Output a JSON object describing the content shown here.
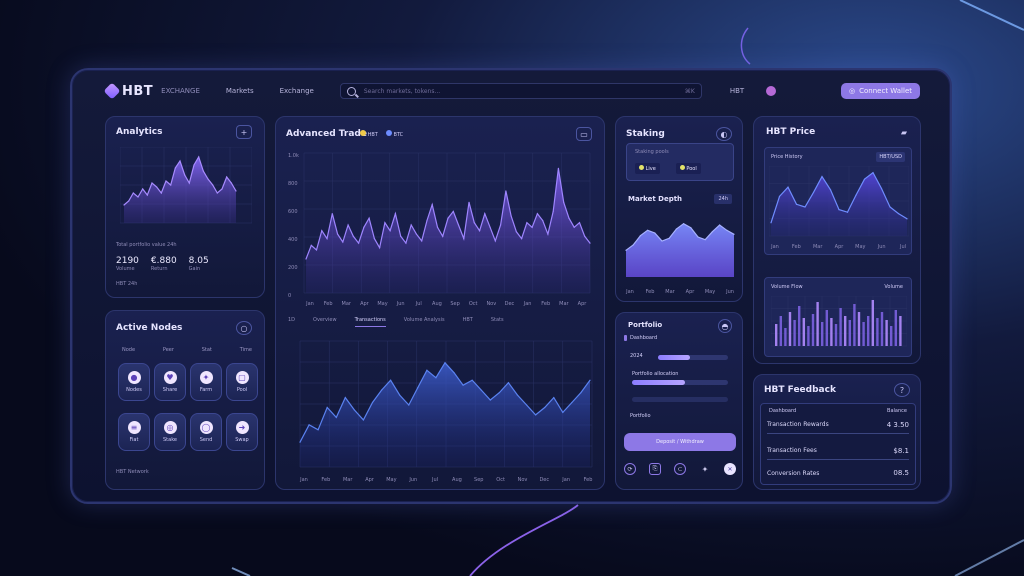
{
  "colors": {
    "accent": "#8d78e6",
    "chart_line": "#9b7dff",
    "chart_fill": "#6b4fd6",
    "blue_line": "#4c6fe0"
  },
  "header": {
    "logo": "HBT",
    "logo_sub": "EXCHANGE",
    "nav": [
      "Markets",
      "Exchange"
    ],
    "search_placeholder": "Search markets, tokens...",
    "right_item": "HBT",
    "button_label": "Connect Wallet"
  },
  "analytics": {
    "title": "Analytics",
    "caption": "Total portfolio value 24h",
    "stats": [
      {
        "value": "2190",
        "label": "Volume"
      },
      {
        "value": "€.880",
        "label": "Return"
      },
      {
        "value": "8.05",
        "label": "Gain"
      }
    ],
    "footer": "HBT 24h",
    "chart_values": [
      18,
      22,
      30,
      26,
      34,
      28,
      40,
      36,
      30,
      42,
      38,
      55,
      62,
      48,
      40,
      58,
      66,
      52,
      44,
      38,
      30,
      34,
      46,
      40,
      32
    ]
  },
  "main_chart": {
    "title": "Advanced Trade",
    "legend": [
      "HBT",
      "BTC"
    ],
    "y_ticks": [
      "1.0k",
      "800",
      "600",
      "400",
      "200",
      "0"
    ],
    "x_ticks": [
      "Jan",
      "Feb",
      "Mar",
      "Apr",
      "May",
      "Jun",
      "Jul",
      "Aug",
      "Sep",
      "Oct",
      "Nov",
      "Dec",
      "Jan",
      "Feb",
      "Mar",
      "Apr"
    ],
    "tabs": [
      "1D",
      "Overview",
      "Transactions",
      "Volume Analysis",
      "HBT",
      "Stats"
    ],
    "values": [
      30,
      42,
      38,
      55,
      48,
      70,
      52,
      45,
      60,
      50,
      44,
      58,
      66,
      48,
      40,
      62,
      55,
      70,
      50,
      44,
      60,
      52,
      46,
      64,
      78,
      58,
      50,
      66,
      72,
      60,
      48,
      80,
      62,
      55,
      70,
      58,
      46,
      60,
      90,
      68,
      54,
      48,
      62,
      58,
      70,
      64,
      52,
      72,
      110,
      80,
      66,
      58,
      62,
      50,
      44
    ],
    "lower_values": [
      20,
      34,
      30,
      48,
      40,
      56,
      46,
      38,
      52,
      62,
      70,
      58,
      50,
      64,
      78,
      72,
      84,
      76,
      66,
      70,
      62,
      54,
      60,
      68,
      58,
      50,
      42,
      48,
      56,
      44,
      52,
      60,
      70
    ]
  },
  "active_nodes": {
    "title": "Active Nodes",
    "columns": [
      "Node",
      "Peer",
      "Stat",
      "Time"
    ],
    "apps": [
      {
        "icon": "●",
        "label": "Nodes"
      },
      {
        "icon": "♥",
        "label": "Share"
      },
      {
        "icon": "✦",
        "label": "Farm"
      },
      {
        "icon": "▢",
        "label": "Pool"
      },
      {
        "icon": "≡",
        "label": "Fiat"
      },
      {
        "icon": "◎",
        "label": "Stake"
      },
      {
        "icon": "◯",
        "label": "Send"
      },
      {
        "icon": "➜",
        "label": "Swap"
      }
    ],
    "footer": "HBT Network"
  },
  "staking": {
    "title": "Staking",
    "sub_title": "Staking pools",
    "chips": [
      "Live",
      "Pool"
    ],
    "market_title": "Market Depth",
    "market_tag": "24h",
    "x_ticks": [
      "Jan",
      "Feb",
      "Mar",
      "Apr",
      "May",
      "Jun"
    ],
    "values": [
      40,
      48,
      62,
      70,
      66,
      54,
      58,
      72,
      80,
      74,
      60,
      56,
      68,
      78,
      70,
      64
    ]
  },
  "portfolio": {
    "title": "Portfolio",
    "items": [
      {
        "label": "Dashboard",
        "progress": 0.0
      },
      {
        "label": "2024",
        "progress": 0.45
      },
      {
        "label": "Portfolio allocation",
        "progress": 0.55
      },
      {
        "label": "Portfolio",
        "progress": 0.0
      }
    ],
    "button": "Deposit / Withdraw"
  },
  "hbt_price": {
    "title": "HBT Price",
    "sub": "Price History",
    "tag": "HBT/USD",
    "x_ticks": [
      "Jan",
      "Feb",
      "Mar",
      "Apr",
      "May",
      "Jun",
      "Jul"
    ],
    "values": [
      20,
      60,
      74,
      48,
      44,
      66,
      90,
      70,
      40,
      36,
      62,
      86,
      96,
      72,
      44,
      34,
      26
    ],
    "volume_title": "Volume Flow",
    "volume_tag": "Volume"
  },
  "hbt_feed": {
    "title": "HBT Feedback",
    "header": [
      "Dashboard",
      "Balance"
    ],
    "rows": [
      {
        "label": "Transaction Rewards",
        "value": "4 3.50"
      },
      {
        "label": "Transaction Fees",
        "value": "$8.1"
      },
      {
        "label": "Conversion Rates",
        "value": "08.5"
      }
    ]
  }
}
